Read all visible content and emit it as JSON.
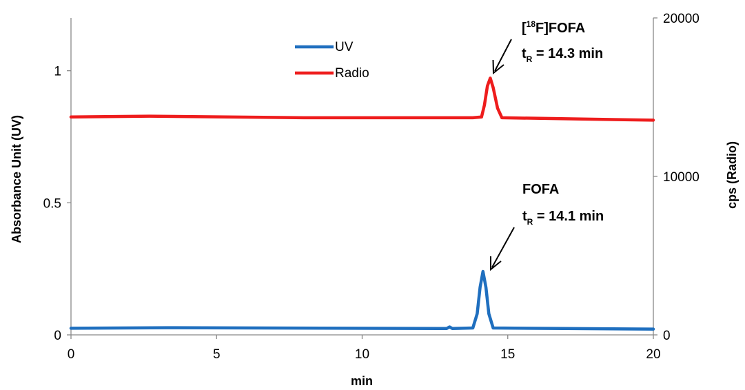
{
  "chart_data": {
    "type": "line",
    "xlabel": "min",
    "ylabel_left": "Absorbance Unit (UV)",
    "ylabel_right": "cps (Radio)",
    "xlim": [
      0,
      20
    ],
    "ylim_left": [
      0,
      1.2
    ],
    "ylim_right": [
      0,
      20000
    ],
    "x_ticks": [
      "0",
      "5",
      "10",
      "15",
      "20"
    ],
    "y_left_ticks": [
      "0",
      "0.5",
      "1"
    ],
    "y_right_ticks": [
      "0",
      "10000",
      "20000"
    ],
    "grid": false,
    "legend_position": "top-center",
    "series": [
      {
        "name": "UV",
        "axis": "left",
        "color": "#1f6fbf",
        "x": [
          0,
          3.3,
          12.9,
          13.0,
          13.1,
          13.8,
          13.95,
          14.05,
          14.15,
          14.25,
          14.35,
          14.5,
          20
        ],
        "y": [
          0.025,
          0.027,
          0.024,
          0.03,
          0.024,
          0.026,
          0.08,
          0.18,
          0.24,
          0.18,
          0.08,
          0.026,
          0.022
        ]
      },
      {
        "name": "Radio",
        "axis": "right",
        "color": "#ee1c1c",
        "x": [
          0,
          2.7,
          8.0,
          13.8,
          14.1,
          14.2,
          14.3,
          14.4,
          14.5,
          14.65,
          14.8,
          20
        ],
        "y": [
          13750,
          13800,
          13700,
          13700,
          13750,
          14500,
          15700,
          16200,
          15600,
          14300,
          13700,
          13550
        ]
      }
    ],
    "annotations": [
      {
        "id": "radio_peak",
        "line1_prefix": "[",
        "line1_sup": "18",
        "line1_rest": "F]FOFA",
        "line2_main": "t",
        "line2_sub": "R",
        "line2_rest": " = 14.3 min"
      },
      {
        "id": "uv_peak",
        "line1_prefix": "FOFA",
        "line2_main": "t",
        "line2_sub": "R",
        "line2_rest": " = 14.1 min"
      }
    ]
  }
}
